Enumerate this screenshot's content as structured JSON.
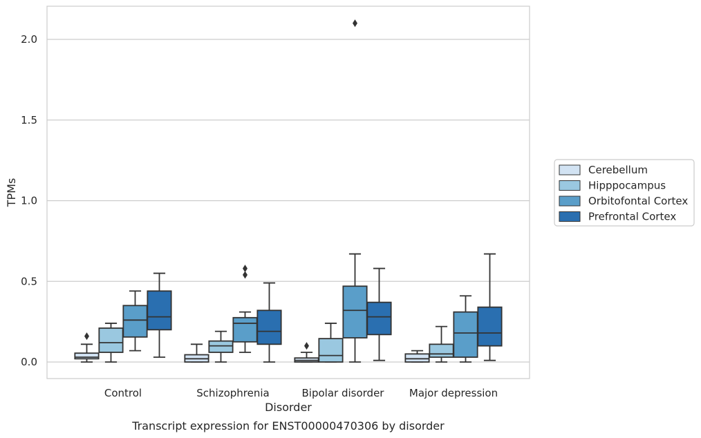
{
  "chart_data": {
    "type": "boxplot",
    "title": "",
    "caption": "Transcript expression for ENST00000470306 by disorder",
    "xlabel": "Disorder",
    "ylabel": "TPMs",
    "ylim": [
      -0.1,
      2.22
    ],
    "yticks": [
      0.0,
      0.5,
      1.0,
      1.5,
      2.0
    ],
    "ytick_labels": [
      "0.0",
      "0.5",
      "1.0",
      "1.5",
      "2.0"
    ],
    "grid": "horizontal",
    "legend_position": "right",
    "categories": [
      "Control",
      "Schizophrenia",
      "Bipolar disorder",
      "Major depression"
    ],
    "series": [
      {
        "name": "Cerebellum",
        "color": "#d2e3f3",
        "boxes": [
          {
            "whislo": 0.0,
            "q1": 0.02,
            "med": 0.03,
            "q3": 0.055,
            "whishi": 0.11,
            "fliers": [
              0.16
            ]
          },
          {
            "whislo": 0.0,
            "q1": 0.0,
            "med": 0.02,
            "q3": 0.045,
            "whishi": 0.11,
            "fliers": []
          },
          {
            "whislo": 0.0,
            "q1": 0.0,
            "med": 0.01,
            "q3": 0.025,
            "whishi": 0.06,
            "fliers": [
              0.1
            ]
          },
          {
            "whislo": 0.0,
            "q1": 0.0,
            "med": 0.02,
            "q3": 0.05,
            "whishi": 0.07,
            "fliers": []
          }
        ]
      },
      {
        "name": "Hipppocampus",
        "color": "#9ac8e0",
        "boxes": [
          {
            "whislo": 0.0,
            "q1": 0.06,
            "med": 0.12,
            "q3": 0.21,
            "whishi": 0.24,
            "fliers": []
          },
          {
            "whislo": 0.0,
            "q1": 0.06,
            "med": 0.1,
            "q3": 0.13,
            "whishi": 0.19,
            "fliers": []
          },
          {
            "whislo": 0.0,
            "q1": 0.0,
            "med": 0.04,
            "q3": 0.145,
            "whishi": 0.24,
            "fliers": []
          },
          {
            "whislo": 0.0,
            "q1": 0.03,
            "med": 0.05,
            "q3": 0.11,
            "whishi": 0.22,
            "fliers": []
          }
        ]
      },
      {
        "name": "Orbitofontal Cortex",
        "color": "#5a9ec9",
        "boxes": [
          {
            "whislo": 0.07,
            "q1": 0.155,
            "med": 0.26,
            "q3": 0.35,
            "whishi": 0.44,
            "fliers": []
          },
          {
            "whislo": 0.06,
            "q1": 0.125,
            "med": 0.24,
            "q3": 0.275,
            "whishi": 0.31,
            "fliers": [
              0.54,
              0.58
            ]
          },
          {
            "whislo": 0.0,
            "q1": 0.15,
            "med": 0.32,
            "q3": 0.47,
            "whishi": 0.67,
            "fliers": [
              2.1
            ]
          },
          {
            "whislo": 0.0,
            "q1": 0.03,
            "med": 0.18,
            "q3": 0.31,
            "whishi": 0.41,
            "fliers": []
          }
        ]
      },
      {
        "name": "Prefrontal Cortex",
        "color": "#2a6fb0",
        "boxes": [
          {
            "whislo": 0.03,
            "q1": 0.2,
            "med": 0.28,
            "q3": 0.44,
            "whishi": 0.55,
            "fliers": []
          },
          {
            "whislo": 0.0,
            "q1": 0.11,
            "med": 0.19,
            "q3": 0.32,
            "whishi": 0.49,
            "fliers": []
          },
          {
            "whislo": 0.01,
            "q1": 0.17,
            "med": 0.28,
            "q3": 0.37,
            "whishi": 0.58,
            "fliers": []
          },
          {
            "whislo": 0.01,
            "q1": 0.1,
            "med": 0.18,
            "q3": 0.34,
            "whishi": 0.67,
            "fliers": []
          }
        ]
      }
    ]
  }
}
